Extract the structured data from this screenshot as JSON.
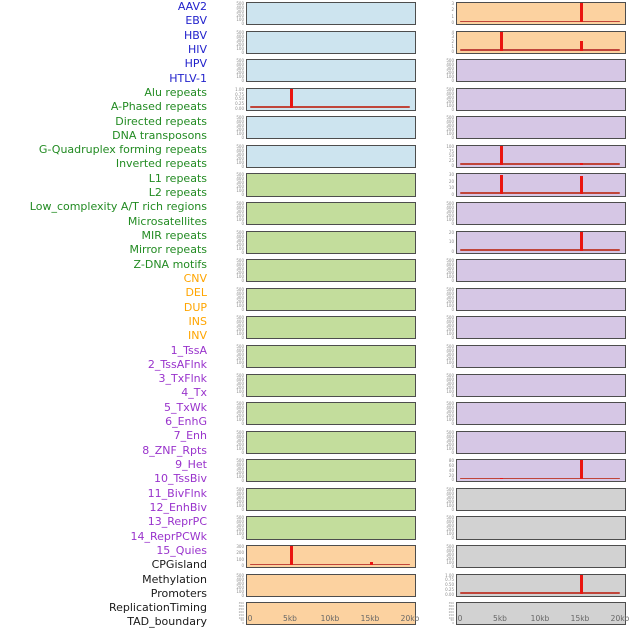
{
  "palette": {
    "label_colors": {
      "virus": "#2222cc",
      "repeat": "#228b22",
      "sv": "#ffa500",
      "chromatin": "#9933cc",
      "other": "#1a1a1a"
    },
    "panel_bg": {
      "virus": "#cde4ef",
      "repeat": "#c3dd9c",
      "sv": "#fcd2a0",
      "chromatin": "#d6c7e5",
      "other": "#d2d2d2"
    },
    "spike_color": "#ea1510",
    "baseline_color": "#c0453a",
    "panel_border": "#4d4d4d",
    "tick_color": "#8a8a8a",
    "xaxis_color": "#666666"
  },
  "chart_data": {
    "type": "line",
    "title": "",
    "layout": {
      "columns": 2,
      "rows_per_column": 22,
      "order": "column-major",
      "grid": false,
      "legend": "none"
    },
    "x_axis": {
      "ticks": [
        "0",
        "5kb",
        "10kb",
        "15kb",
        "20kb"
      ],
      "range_kb": [
        0,
        20
      ]
    },
    "tracks": [
      {
        "label": "AAV2",
        "category": "virus",
        "column": "left",
        "yticks": [
          "500",
          "400",
          "300",
          "200",
          "100",
          "0"
        ],
        "ymax": 500,
        "baseline": false,
        "spikes": []
      },
      {
        "label": "EBV",
        "category": "virus",
        "column": "left",
        "yticks": [
          "500",
          "400",
          "300",
          "200",
          "100",
          "0"
        ],
        "ymax": 500,
        "baseline": false,
        "spikes": []
      },
      {
        "label": "HBV",
        "category": "virus",
        "column": "left",
        "yticks": [
          "500",
          "400",
          "300",
          "200",
          "100",
          "0"
        ],
        "ymax": 500,
        "baseline": false,
        "spikes": []
      },
      {
        "label": "HIV",
        "category": "virus",
        "column": "left",
        "yticks": [
          "1.00",
          "0.75",
          "0.50",
          "0.25",
          "0.00"
        ],
        "ymax": 1,
        "baseline": true,
        "spikes": [
          {
            "x_kb": 5,
            "value": 1.0
          }
        ]
      },
      {
        "label": "HPV",
        "category": "virus",
        "column": "left",
        "yticks": [
          "500",
          "400",
          "300",
          "200",
          "100",
          "0"
        ],
        "ymax": 500,
        "baseline": false,
        "spikes": []
      },
      {
        "label": "HTLV-1",
        "category": "virus",
        "column": "left",
        "yticks": [
          "500",
          "400",
          "300",
          "200",
          "100",
          "0"
        ],
        "ymax": 500,
        "baseline": false,
        "spikes": []
      },
      {
        "label": "Alu repeats",
        "category": "repeat",
        "column": "left",
        "yticks": [
          "500",
          "400",
          "300",
          "200",
          "100",
          "0"
        ],
        "ymax": 500,
        "baseline": false,
        "spikes": []
      },
      {
        "label": "A-Phased repeats",
        "category": "repeat",
        "column": "left",
        "yticks": [
          "500",
          "400",
          "300",
          "200",
          "100",
          "0"
        ],
        "ymax": 500,
        "baseline": false,
        "spikes": []
      },
      {
        "label": "Directed repeats",
        "category": "repeat",
        "column": "left",
        "yticks": [
          "500",
          "400",
          "300",
          "200",
          "100",
          "0"
        ],
        "ymax": 500,
        "baseline": false,
        "spikes": []
      },
      {
        "label": "DNA transposons",
        "category": "repeat",
        "column": "left",
        "yticks": [
          "500",
          "400",
          "300",
          "200",
          "100",
          "0"
        ],
        "ymax": 500,
        "baseline": false,
        "spikes": []
      },
      {
        "label": "G-Quadruplex forming repeats",
        "category": "repeat",
        "column": "left",
        "yticks": [
          "500",
          "400",
          "300",
          "200",
          "100",
          "0"
        ],
        "ymax": 500,
        "baseline": false,
        "spikes": []
      },
      {
        "label": "Inverted repeats",
        "category": "repeat",
        "column": "left",
        "yticks": [
          "500",
          "400",
          "300",
          "200",
          "100",
          "0"
        ],
        "ymax": 500,
        "baseline": false,
        "spikes": []
      },
      {
        "label": "L1 repeats",
        "category": "repeat",
        "column": "left",
        "yticks": [
          "500",
          "400",
          "300",
          "200",
          "100",
          "0"
        ],
        "ymax": 500,
        "baseline": false,
        "spikes": []
      },
      {
        "label": "L2 repeats",
        "category": "repeat",
        "column": "left",
        "yticks": [
          "500",
          "400",
          "300",
          "200",
          "100",
          "0"
        ],
        "ymax": 500,
        "baseline": false,
        "spikes": []
      },
      {
        "label": "Low_complexity A/T rich regions",
        "category": "repeat",
        "column": "left",
        "yticks": [
          "500",
          "400",
          "300",
          "200",
          "100",
          "0"
        ],
        "ymax": 500,
        "baseline": false,
        "spikes": []
      },
      {
        "label": "Microsatellites",
        "category": "repeat",
        "column": "left",
        "yticks": [
          "500",
          "400",
          "300",
          "200",
          "100",
          "0"
        ],
        "ymax": 500,
        "baseline": false,
        "spikes": []
      },
      {
        "label": "MIR repeats",
        "category": "repeat",
        "column": "left",
        "yticks": [
          "500",
          "400",
          "300",
          "200",
          "100",
          "0"
        ],
        "ymax": 500,
        "baseline": false,
        "spikes": []
      },
      {
        "label": "Mirror repeats",
        "category": "repeat",
        "column": "left",
        "yticks": [
          "500",
          "400",
          "300",
          "200",
          "100",
          "0"
        ],
        "ymax": 500,
        "baseline": false,
        "spikes": []
      },
      {
        "label": "Z-DNA motifs",
        "category": "repeat",
        "column": "left",
        "yticks": [
          "500",
          "400",
          "300",
          "200",
          "100",
          "0"
        ],
        "ymax": 500,
        "baseline": false,
        "spikes": []
      },
      {
        "label": "CNV",
        "category": "sv",
        "column": "left",
        "yticks": [
          "300",
          "200",
          "100",
          "0"
        ],
        "ymax": 300,
        "baseline": true,
        "spikes": [
          {
            "x_kb": 5,
            "value": 320
          },
          {
            "x_kb": 15,
            "value": 50
          }
        ]
      },
      {
        "label": "DEL",
        "category": "sv",
        "column": "left",
        "yticks": [
          "500",
          "400",
          "300",
          "200",
          "100",
          "0"
        ],
        "ymax": 500,
        "baseline": false,
        "spikes": []
      },
      {
        "label": "DUP",
        "category": "sv",
        "column": "left",
        "yticks": [
          "350",
          "300",
          "250",
          "200",
          "150",
          "100",
          "50",
          "0"
        ],
        "ymax": 350,
        "baseline": false,
        "spikes": [],
        "dense": true
      },
      {
        "label": "INS",
        "category": "sv",
        "column": "right",
        "yticks": [
          "3",
          "2",
          "1",
          "0"
        ],
        "ymax": 3,
        "baseline": true,
        "spikes": [
          {
            "x_kb": 15,
            "value": 3.1
          }
        ]
      },
      {
        "label": "INV",
        "category": "sv",
        "column": "right",
        "yticks": [
          "4",
          "3",
          "2",
          "1",
          "0"
        ],
        "ymax": 4,
        "baseline": true,
        "spikes": [
          {
            "x_kb": 5,
            "value": 4.1
          },
          {
            "x_kb": 15,
            "value": 2
          }
        ]
      },
      {
        "label": "1_TssA",
        "category": "chromatin",
        "column": "right",
        "yticks": [
          "500",
          "400",
          "300",
          "200",
          "100",
          "0"
        ],
        "ymax": 500,
        "baseline": false,
        "spikes": []
      },
      {
        "label": "2_TssAFlnk",
        "category": "chromatin",
        "column": "right",
        "yticks": [
          "500",
          "400",
          "300",
          "200",
          "100",
          "0"
        ],
        "ymax": 500,
        "baseline": false,
        "spikes": []
      },
      {
        "label": "3_TxFlnk",
        "category": "chromatin",
        "column": "right",
        "yticks": [
          "500",
          "400",
          "300",
          "200",
          "100",
          "0"
        ],
        "ymax": 500,
        "baseline": false,
        "spikes": []
      },
      {
        "label": "4_Tx",
        "category": "chromatin",
        "column": "right",
        "yticks": [
          "100",
          "75",
          "50",
          "25",
          "0"
        ],
        "ymax": 100,
        "baseline": true,
        "spikes": [
          {
            "x_kb": 5,
            "value": 103
          },
          {
            "x_kb": 15,
            "value": 12
          }
        ]
      },
      {
        "label": "5_TxWk",
        "category": "chromatin",
        "column": "right",
        "yticks": [
          "30",
          "20",
          "10",
          "0"
        ],
        "ymax": 30,
        "baseline": true,
        "spikes": [
          {
            "x_kb": 5,
            "value": 31
          },
          {
            "x_kb": 15,
            "value": 27
          }
        ]
      },
      {
        "label": "6_EnhG",
        "category": "chromatin",
        "column": "right",
        "yticks": [
          "500",
          "400",
          "300",
          "200",
          "100",
          "0"
        ],
        "ymax": 500,
        "baseline": false,
        "spikes": []
      },
      {
        "label": "7_Enh",
        "category": "chromatin",
        "column": "right",
        "yticks": [
          "20",
          "10",
          "0"
        ],
        "ymax": 20,
        "baseline": true,
        "spikes": [
          {
            "x_kb": 15,
            "value": 22
          }
        ]
      },
      {
        "label": "8_ZNF_Rpts",
        "category": "chromatin",
        "column": "right",
        "yticks": [
          "500",
          "400",
          "300",
          "200",
          "100",
          "0"
        ],
        "ymax": 500,
        "baseline": false,
        "spikes": []
      },
      {
        "label": "9_Het",
        "category": "chromatin",
        "column": "right",
        "yticks": [
          "500",
          "400",
          "300",
          "200",
          "100",
          "0"
        ],
        "ymax": 500,
        "baseline": false,
        "spikes": []
      },
      {
        "label": "10_TssBiv",
        "category": "chromatin",
        "column": "right",
        "yticks": [
          "500",
          "400",
          "300",
          "200",
          "100",
          "0"
        ],
        "ymax": 500,
        "baseline": false,
        "spikes": []
      },
      {
        "label": "11_BivFlnk",
        "category": "chromatin",
        "column": "right",
        "yticks": [
          "500",
          "400",
          "300",
          "200",
          "100",
          "0"
        ],
        "ymax": 500,
        "baseline": false,
        "spikes": []
      },
      {
        "label": "12_EnhBiv",
        "category": "chromatin",
        "column": "right",
        "yticks": [
          "500",
          "400",
          "300",
          "200",
          "100",
          "0"
        ],
        "ymax": 500,
        "baseline": false,
        "spikes": []
      },
      {
        "label": "13_ReprPC",
        "category": "chromatin",
        "column": "right",
        "yticks": [
          "500",
          "400",
          "300",
          "200",
          "100",
          "0"
        ],
        "ymax": 500,
        "baseline": false,
        "spikes": []
      },
      {
        "label": "14_ReprPCWk",
        "category": "chromatin",
        "column": "right",
        "yticks": [
          "500",
          "400",
          "300",
          "200",
          "100",
          "0"
        ],
        "ymax": 500,
        "baseline": false,
        "spikes": []
      },
      {
        "label": "15_Quies",
        "category": "chromatin",
        "column": "right",
        "yticks": [
          "80",
          "60",
          "40",
          "20",
          "0"
        ],
        "ymax": 80,
        "baseline": true,
        "spikes": [
          {
            "x_kb": 5,
            "value": 5
          },
          {
            "x_kb": 15,
            "value": 82
          }
        ]
      },
      {
        "label": "CPGisland",
        "category": "other",
        "column": "right",
        "yticks": [
          "500",
          "400",
          "300",
          "200",
          "100",
          "0"
        ],
        "ymax": 500,
        "baseline": false,
        "spikes": []
      },
      {
        "label": "Methylation",
        "category": "other",
        "column": "right",
        "yticks": [
          "500",
          "400",
          "300",
          "200",
          "100",
          "0"
        ],
        "ymax": 500,
        "baseline": false,
        "spikes": []
      },
      {
        "label": "Promoters",
        "category": "other",
        "column": "right",
        "yticks": [
          "500",
          "400",
          "300",
          "200",
          "100",
          "0"
        ],
        "ymax": 500,
        "baseline": false,
        "spikes": []
      },
      {
        "label": "ReplicationTiming",
        "category": "other",
        "column": "right",
        "yticks": [
          "1.00",
          "0.75",
          "0.50",
          "0.25",
          "0.00"
        ],
        "ymax": 1,
        "baseline": true,
        "spikes": [
          {
            "x_kb": 15,
            "value": 1.0
          }
        ]
      },
      {
        "label": "TAD_boundary",
        "category": "other",
        "column": "right",
        "yticks": [
          "350",
          "300",
          "250",
          "200",
          "150",
          "100",
          "50",
          "0"
        ],
        "ymax": 350,
        "baseline": false,
        "spikes": [],
        "dense": true
      }
    ]
  }
}
